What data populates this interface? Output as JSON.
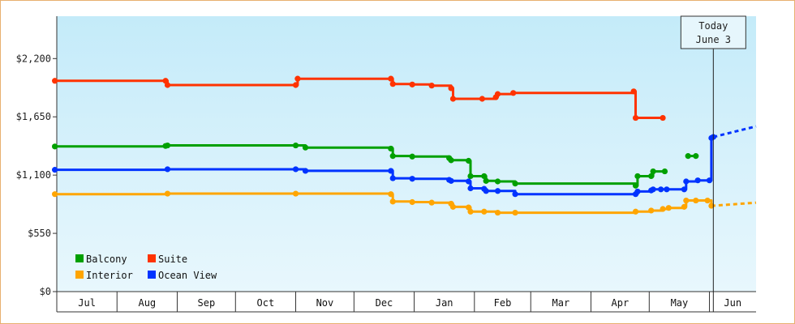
{
  "chart_data": {
    "type": "line",
    "title": "",
    "xlabel": "",
    "ylabel": "",
    "ylim": [
      0,
      2600
    ],
    "y_ticks": [
      {
        "value": 0,
        "label": "$0"
      },
      {
        "value": 550,
        "label": "$550"
      },
      {
        "value": 1100,
        "label": "$1,100"
      },
      {
        "value": 1650,
        "label": "$1,650"
      },
      {
        "value": 2200,
        "label": "$2,200"
      }
    ],
    "x_domain": [
      "2023-07-01",
      "2024-06-25"
    ],
    "months": [
      {
        "label": "Jul",
        "start": "2023-07-01",
        "end": "2023-08-01"
      },
      {
        "label": "Aug",
        "start": "2023-08-01",
        "end": "2023-09-01"
      },
      {
        "label": "Sep",
        "start": "2023-09-01",
        "end": "2023-10-01"
      },
      {
        "label": "Oct",
        "start": "2023-10-01",
        "end": "2023-11-01"
      },
      {
        "label": "Nov",
        "start": "2023-11-01",
        "end": "2023-12-01"
      },
      {
        "label": "Dec",
        "start": "2023-12-01",
        "end": "2024-01-01"
      },
      {
        "label": "Jan",
        "start": "2024-01-01",
        "end": "2024-02-01"
      },
      {
        "label": "Feb",
        "start": "2024-02-01",
        "end": "2024-03-01"
      },
      {
        "label": "Mar",
        "start": "2024-03-01",
        "end": "2024-04-01"
      },
      {
        "label": "Apr",
        "start": "2024-04-01",
        "end": "2024-05-01"
      },
      {
        "label": "May",
        "start": "2024-05-01",
        "end": "2024-06-01"
      },
      {
        "label": "Jun",
        "start": "2024-06-01",
        "end": "2024-06-25"
      }
    ],
    "grid": false,
    "legend_position": "bottom-left",
    "today": {
      "line1": "Today",
      "line2": "June 3",
      "date": "2024-06-03"
    },
    "series": [
      {
        "name": "Suite",
        "color": "#ff3300",
        "points": [
          {
            "x": "2023-06-30",
            "y": 1990
          },
          {
            "x": "2023-08-26",
            "y": 1990
          },
          {
            "x": "2023-08-27",
            "y": 1950
          },
          {
            "x": "2023-11-01",
            "y": 1950
          },
          {
            "x": "2023-11-02",
            "y": 2010
          },
          {
            "x": "2023-12-20",
            "y": 2010
          },
          {
            "x": "2023-12-21",
            "y": 1960
          },
          {
            "x": "2023-12-31",
            "y": 1955
          },
          {
            "x": "2024-01-10",
            "y": 1945
          },
          {
            "x": "2024-01-20",
            "y": 1920
          },
          {
            "x": "2024-01-21",
            "y": 1820
          },
          {
            "x": "2024-02-05",
            "y": 1820
          },
          {
            "x": "2024-02-12",
            "y": 1835
          },
          {
            "x": "2024-02-13",
            "y": 1865
          },
          {
            "x": "2024-02-21",
            "y": 1875
          },
          {
            "x": "2024-04-23",
            "y": 1890
          },
          {
            "x": "2024-04-24",
            "y": 1640
          },
          {
            "x": "2024-05-08",
            "y": 1640
          }
        ]
      },
      {
        "name": "Balcony",
        "color": "#00a000",
        "points": [
          {
            "x": "2023-06-30",
            "y": 1370
          },
          {
            "x": "2023-08-26",
            "y": 1375
          },
          {
            "x": "2023-08-27",
            "y": 1380
          },
          {
            "x": "2023-11-01",
            "y": 1380
          },
          {
            "x": "2023-11-06",
            "y": 1360
          },
          {
            "x": "2023-12-20",
            "y": 1350
          },
          {
            "x": "2023-12-21",
            "y": 1280
          },
          {
            "x": "2023-12-31",
            "y": 1275
          },
          {
            "x": "2024-01-19",
            "y": 1260
          },
          {
            "x": "2024-01-20",
            "y": 1240
          },
          {
            "x": "2024-01-29",
            "y": 1235
          },
          {
            "x": "2024-01-30",
            "y": 1090
          },
          {
            "x": "2024-02-06",
            "y": 1090
          },
          {
            "x": "2024-02-07",
            "y": 1045
          },
          {
            "x": "2024-02-13",
            "y": 1040
          },
          {
            "x": "2024-02-22",
            "y": 1020
          },
          {
            "x": "2024-04-24",
            "y": 1000
          },
          {
            "x": "2024-04-25",
            "y": 1090
          },
          {
            "x": "2024-05-02",
            "y": 1090
          },
          {
            "x": "2024-05-03",
            "y": 1135
          },
          {
            "x": "2024-05-09",
            "y": 1135
          }
        ]
      },
      {
        "name": "Balcony",
        "color": "#00a000",
        "points": [
          {
            "x": "2024-05-21",
            "y": 1280
          },
          {
            "x": "2024-05-25",
            "y": 1280
          }
        ]
      },
      {
        "name": "Ocean View",
        "color": "#0033ff",
        "points": [
          {
            "x": "2023-06-30",
            "y": 1150
          },
          {
            "x": "2023-08-27",
            "y": 1155
          },
          {
            "x": "2023-11-01",
            "y": 1155
          },
          {
            "x": "2023-11-06",
            "y": 1140
          },
          {
            "x": "2023-12-20",
            "y": 1140
          },
          {
            "x": "2023-12-21",
            "y": 1070
          },
          {
            "x": "2023-12-31",
            "y": 1065
          },
          {
            "x": "2024-01-19",
            "y": 1055
          },
          {
            "x": "2024-01-20",
            "y": 1045
          },
          {
            "x": "2024-01-29",
            "y": 1040
          },
          {
            "x": "2024-01-30",
            "y": 975
          },
          {
            "x": "2024-02-06",
            "y": 970
          },
          {
            "x": "2024-02-07",
            "y": 950
          },
          {
            "x": "2024-02-13",
            "y": 950
          },
          {
            "x": "2024-02-22",
            "y": 920
          },
          {
            "x": "2024-04-24",
            "y": 920
          },
          {
            "x": "2024-04-25",
            "y": 945
          },
          {
            "x": "2024-05-02",
            "y": 955
          },
          {
            "x": "2024-05-03",
            "y": 965
          },
          {
            "x": "2024-05-07",
            "y": 965
          },
          {
            "x": "2024-05-10",
            "y": 965
          },
          {
            "x": "2024-05-19",
            "y": 965
          },
          {
            "x": "2024-05-20",
            "y": 1040
          },
          {
            "x": "2024-05-26",
            "y": 1050
          },
          {
            "x": "2024-06-01",
            "y": 1050
          },
          {
            "x": "2024-06-02",
            "y": 1450
          },
          {
            "x": "2024-06-03",
            "y": 1460
          }
        ]
      },
      {
        "name": "Ocean View",
        "color": "#0033ff",
        "dashed": true,
        "points": [
          {
            "x": "2024-06-03",
            "y": 1460
          },
          {
            "x": "2024-06-25",
            "y": 1560
          }
        ]
      },
      {
        "name": "Interior",
        "color": "#ffa500",
        "points": [
          {
            "x": "2023-06-30",
            "y": 920
          },
          {
            "x": "2023-08-27",
            "y": 925
          },
          {
            "x": "2023-11-01",
            "y": 925
          },
          {
            "x": "2023-12-20",
            "y": 920
          },
          {
            "x": "2023-12-21",
            "y": 850
          },
          {
            "x": "2023-12-31",
            "y": 845
          },
          {
            "x": "2024-01-10",
            "y": 840
          },
          {
            "x": "2024-01-20",
            "y": 830
          },
          {
            "x": "2024-01-21",
            "y": 800
          },
          {
            "x": "2024-01-29",
            "y": 795
          },
          {
            "x": "2024-01-30",
            "y": 755
          },
          {
            "x": "2024-02-06",
            "y": 755
          },
          {
            "x": "2024-02-13",
            "y": 745
          },
          {
            "x": "2024-02-22",
            "y": 745
          },
          {
            "x": "2024-04-24",
            "y": 755
          },
          {
            "x": "2024-05-02",
            "y": 765
          },
          {
            "x": "2024-05-08",
            "y": 780
          },
          {
            "x": "2024-05-11",
            "y": 790
          },
          {
            "x": "2024-05-19",
            "y": 800
          },
          {
            "x": "2024-05-20",
            "y": 860
          },
          {
            "x": "2024-05-25",
            "y": 860
          },
          {
            "x": "2024-05-31",
            "y": 860
          },
          {
            "x": "2024-06-02",
            "y": 810
          }
        ]
      },
      {
        "name": "Interior",
        "color": "#ffa500",
        "dashed": true,
        "points": [
          {
            "x": "2024-06-02",
            "y": 810
          },
          {
            "x": "2024-06-25",
            "y": 840
          }
        ]
      }
    ],
    "legend": [
      {
        "name": "Balcony",
        "color": "#00a000"
      },
      {
        "name": "Suite",
        "color": "#ff3300"
      },
      {
        "name": "Interior",
        "color": "#ffa500"
      },
      {
        "name": "Ocean View",
        "color": "#0033ff"
      }
    ]
  }
}
